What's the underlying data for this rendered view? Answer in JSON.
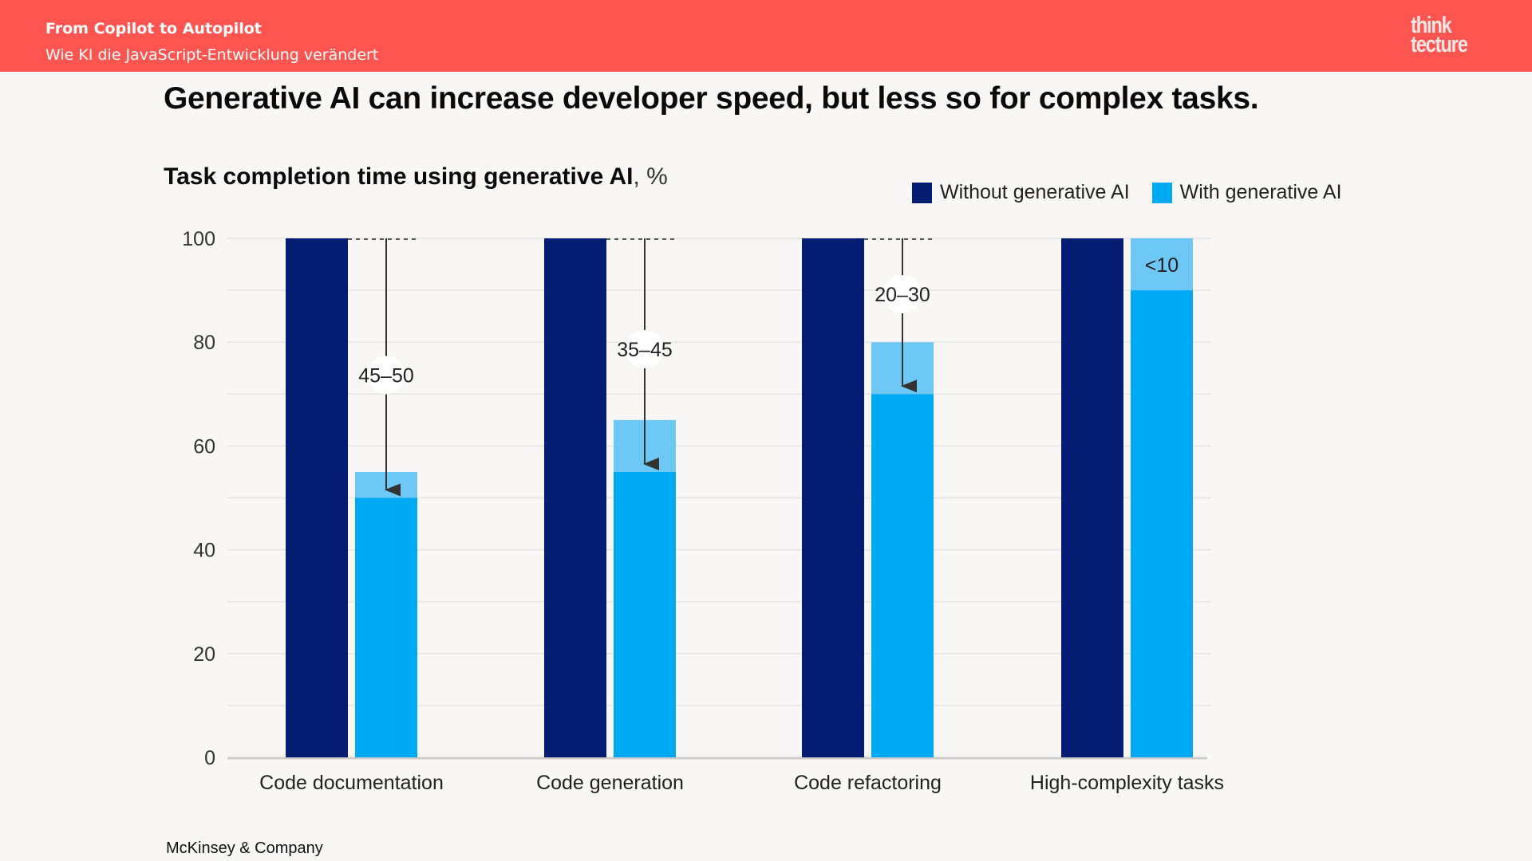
{
  "header": {
    "title": "From Copilot to Autopilot",
    "subtitle": "Wie KI die JavaScript-Entwicklung verändert",
    "logo_line1": "think",
    "logo_line2": "tecture",
    "color": "#ff5551"
  },
  "slide": {
    "title": "Generative AI can increase developer speed, but less so for complex tasks.",
    "source": "McKinsey & Company"
  },
  "colors": {
    "without": "#051c73",
    "with": "#00a9f4",
    "range": "#6ec8f6",
    "grid": "#e6e4e2",
    "axis": "#cfcdcb",
    "arrow": "#333333"
  },
  "chart_data": {
    "type": "bar",
    "title": "Task completion time using generative AI",
    "title_unit": ", %",
    "xlabel": "",
    "ylabel": "",
    "ylim": [
      0,
      100
    ],
    "yticks": [
      0,
      20,
      40,
      60,
      80,
      100
    ],
    "grid": true,
    "legend_position": "top-right",
    "categories": [
      "Code documentation",
      "Code generation",
      "Code refactoring",
      "High-complexity tasks"
    ],
    "series": [
      {
        "name": "Without generative AI",
        "values": [
          100,
          100,
          100,
          100
        ]
      },
      {
        "name": "With generative AI",
        "values": [
          50,
          55,
          70,
          90
        ],
        "range_upper": [
          55,
          65,
          80,
          100
        ]
      }
    ],
    "annotations": [
      "45–50",
      "35–45",
      "20–30",
      "<10"
    ]
  }
}
